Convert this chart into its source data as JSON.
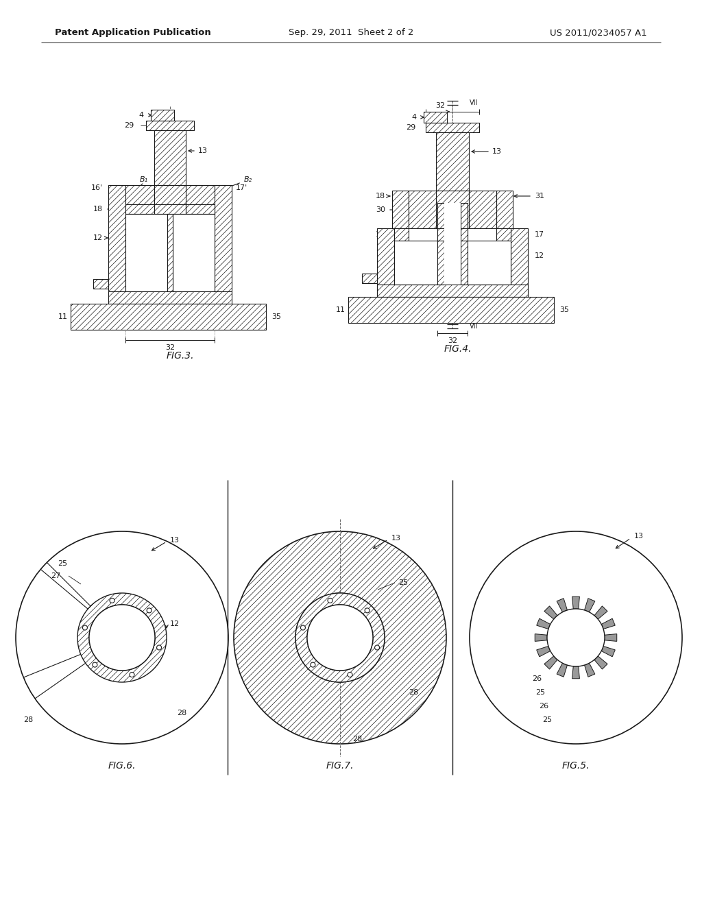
{
  "bg_color": "#ffffff",
  "line_color": "#1a1a1a",
  "header_left": "Patent Application Publication",
  "header_center": "Sep. 29, 2011  Sheet 2 of 2",
  "header_right": "US 2011/0234057 A1"
}
